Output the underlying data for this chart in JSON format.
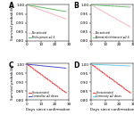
{
  "panels": [
    {
      "label": "A",
      "line1": {
        "color": "#f5c0c8",
        "label": "No antiviral",
        "start": 1.0,
        "end": 0.92
      },
      "line2": {
        "color": "#72c172",
        "label": "Molnupiravir ≥2.4",
        "start": 1.0,
        "end": 0.962
      }
    },
    {
      "label": "B",
      "line1": {
        "color": "#f5c0c8",
        "label": "No antiviral",
        "start": 1.0,
        "end": 0.875
      },
      "line2": {
        "color": "#72c172",
        "label": "Nirmatrelvir/ritonavir ≥2.4",
        "start": 1.0,
        "end": 0.987
      }
    },
    {
      "label": "C",
      "line1": {
        "color": "#e85050",
        "label": "Unvaccinated",
        "start": 1.0,
        "end": 0.838
      },
      "line2": {
        "color": "#5555cc",
        "label": "CoronaVac ≥2 doses",
        "start": 1.0,
        "end": 0.978
      }
    },
    {
      "label": "D",
      "line1": {
        "color": "#e85050",
        "label": "Unvaccinated",
        "start": 1.0,
        "end": 0.838
      },
      "line2": {
        "color": "#66ccee",
        "label": "Comirnaty ≥2 doses",
        "start": 1.0,
        "end": 0.99
      }
    }
  ],
  "xlabel": "Days since confirmation",
  "ylabel": "Survival probability",
  "xlim": [
    0,
    30
  ],
  "xticks": [
    0,
    10,
    20,
    30
  ],
  "ylim": [
    0.8,
    1.005
  ],
  "yticks": [
    0.8,
    0.85,
    0.9,
    0.95,
    1.0
  ],
  "background": "#ffffff"
}
